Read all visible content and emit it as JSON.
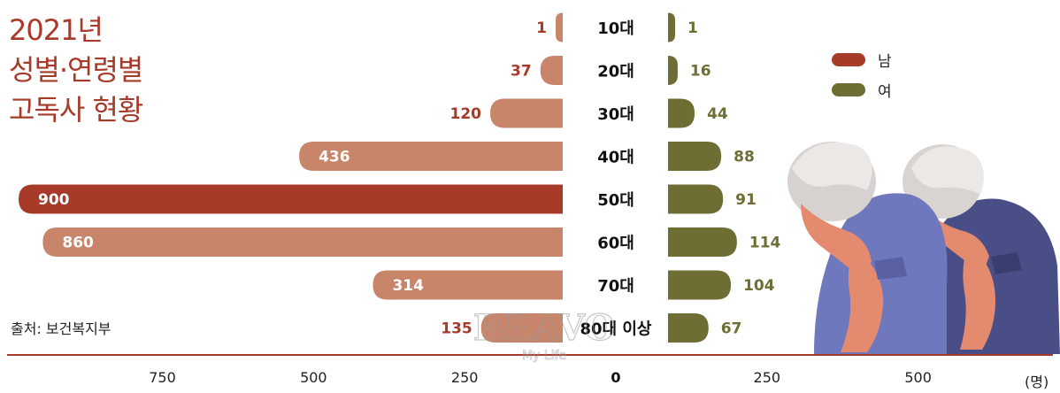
{
  "title_lines": [
    "2021년",
    "성별·연령별",
    "고독사 현황"
  ],
  "source": "출처: 보건복지부",
  "unit": "(명)",
  "legend": [
    {
      "label": "남",
      "color": "#a83a2a"
    },
    {
      "label": "여",
      "color": "#6e6e34"
    }
  ],
  "watermark": {
    "brand": "BRAVO",
    "tagline": "My Life"
  },
  "colors": {
    "male": "#c9856a",
    "male_highlight": "#a83a2a",
    "female": "#6e6e34",
    "male_text": "#a83a2a",
    "female_text": "#6e6e34",
    "axis_line": "#a83a2a"
  },
  "chart_data": {
    "type": "bar",
    "orientation": "horizontal-butterfly",
    "categories": [
      "10대",
      "20대",
      "30대",
      "40대",
      "50대",
      "60대",
      "70대",
      "80대 이상"
    ],
    "series": [
      {
        "name": "남",
        "values": [
          1,
          37,
          120,
          436,
          900,
          860,
          314,
          135
        ],
        "highlight_index": 4
      },
      {
        "name": "여",
        "values": [
          1,
          16,
          44,
          88,
          91,
          114,
          104,
          67
        ]
      }
    ],
    "x_ticks_left": [
      750,
      500,
      250
    ],
    "x_tick_center": 0,
    "x_ticks_right": [
      250,
      500
    ],
    "grid": false,
    "legend_position": "top-right"
  }
}
